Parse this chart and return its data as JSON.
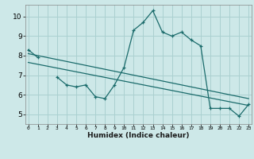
{
  "xlabel": "Humidex (Indice chaleur)",
  "x_values": [
    0,
    1,
    2,
    3,
    4,
    5,
    6,
    7,
    8,
    9,
    10,
    11,
    12,
    13,
    14,
    15,
    16,
    17,
    18,
    19,
    20,
    21,
    22,
    23
  ],
  "line_y": [
    8.3,
    7.9,
    null,
    6.9,
    6.5,
    6.4,
    6.5,
    5.9,
    5.8,
    6.5,
    7.4,
    9.3,
    9.7,
    10.3,
    9.2,
    9.0,
    9.2,
    8.8,
    8.5,
    5.3,
    5.3,
    5.3,
    4.9,
    5.5
  ],
  "trend1_x": [
    0,
    23
  ],
  "trend1_y": [
    8.1,
    5.8
  ],
  "trend2_x": [
    0,
    23
  ],
  "trend2_y": [
    7.65,
    5.45
  ],
  "bg_color": "#cde8e8",
  "grid_color": "#aad0d0",
  "line_color": "#1a6b6b",
  "ylim": [
    4.5,
    10.6
  ],
  "yticks": [
    5,
    6,
    7,
    8,
    9,
    10
  ],
  "xlim": [
    -0.3,
    23.3
  ]
}
